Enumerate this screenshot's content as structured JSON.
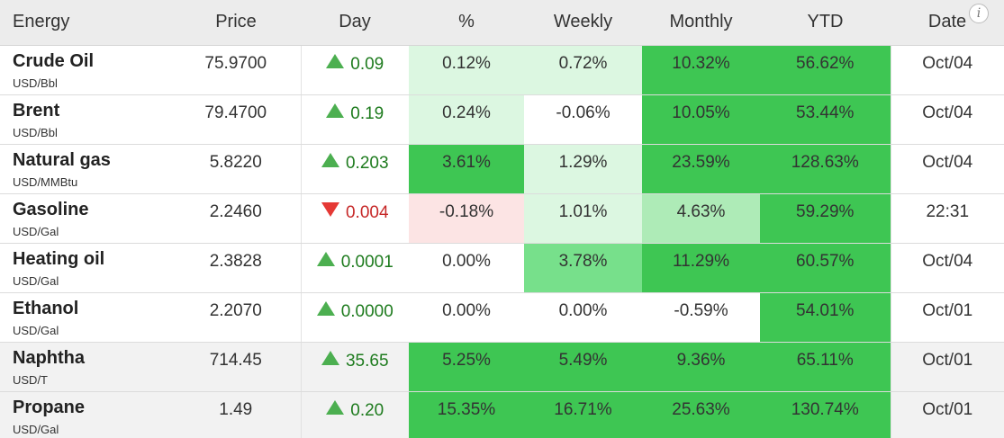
{
  "headers": [
    "Energy",
    "Price",
    "Day",
    "%",
    "Weekly",
    "Monthly",
    "YTD",
    "Date"
  ],
  "info_icon": "i",
  "colors": {
    "up_arrow": "#4caf50",
    "down_arrow": "#e53935",
    "strong_green": "#3ec653",
    "medium_green": "#77e08b",
    "light_green": "#aeebb7",
    "pale_green": "#dcf7e1",
    "pale_red": "#fce4e4",
    "shaded_row": "#f2f2f2"
  },
  "rows": [
    {
      "name": "Crude Oil",
      "unit": "USD/Bbl",
      "price": "75.9700",
      "day": "0.09",
      "direction": "up",
      "pct": "0.12%",
      "weekly": "0.72%",
      "monthly": "10.32%",
      "ytd": "56.62%",
      "date": "Oct/04",
      "shaded": false,
      "heat": {
        "pct": "pale_green",
        "weekly": "pale_green",
        "monthly": "strong_green",
        "ytd": "strong_green"
      }
    },
    {
      "name": "Brent",
      "unit": "USD/Bbl",
      "price": "79.4700",
      "day": "0.19",
      "direction": "up",
      "pct": "0.24%",
      "weekly": "-0.06%",
      "monthly": "10.05%",
      "ytd": "53.44%",
      "date": "Oct/04",
      "shaded": false,
      "heat": {
        "pct": "pale_green",
        "weekly": "",
        "monthly": "strong_green",
        "ytd": "strong_green"
      }
    },
    {
      "name": "Natural gas",
      "unit": "USD/MMBtu",
      "price": "5.8220",
      "day": "0.203",
      "direction": "up",
      "pct": "3.61%",
      "weekly": "1.29%",
      "monthly": "23.59%",
      "ytd": "128.63%",
      "date": "Oct/04",
      "shaded": false,
      "heat": {
        "pct": "strong_green",
        "weekly": "pale_green",
        "monthly": "strong_green",
        "ytd": "strong_green"
      }
    },
    {
      "name": "Gasoline",
      "unit": "USD/Gal",
      "price": "2.2460",
      "day": "0.004",
      "direction": "down",
      "pct": "-0.18%",
      "weekly": "1.01%",
      "monthly": "4.63%",
      "ytd": "59.29%",
      "date": "22:31",
      "shaded": false,
      "heat": {
        "pct": "pale_red",
        "weekly": "pale_green",
        "monthly": "light_green",
        "ytd": "strong_green"
      }
    },
    {
      "name": "Heating oil",
      "unit": "USD/Gal",
      "price": "2.3828",
      "day": "0.0001",
      "direction": "up",
      "pct": "0.00%",
      "weekly": "3.78%",
      "monthly": "11.29%",
      "ytd": "60.57%",
      "date": "Oct/04",
      "shaded": false,
      "heat": {
        "pct": "",
        "weekly": "medium_green",
        "monthly": "strong_green",
        "ytd": "strong_green"
      }
    },
    {
      "name": "Ethanol",
      "unit": "USD/Gal",
      "price": "2.2070",
      "day": "0.0000",
      "direction": "up",
      "pct": "0.00%",
      "weekly": "0.00%",
      "monthly": "-0.59%",
      "ytd": "54.01%",
      "date": "Oct/01",
      "shaded": false,
      "heat": {
        "pct": "",
        "weekly": "",
        "monthly": "",
        "ytd": "strong_green"
      }
    },
    {
      "name": "Naphtha",
      "unit": "USD/T",
      "price": "714.45",
      "day": "35.65",
      "direction": "up",
      "pct": "5.25%",
      "weekly": "5.49%",
      "monthly": "9.36%",
      "ytd": "65.11%",
      "date": "Oct/01",
      "shaded": true,
      "heat": {
        "pct": "strong_green",
        "weekly": "strong_green",
        "monthly": "strong_green",
        "ytd": "strong_green"
      }
    },
    {
      "name": "Propane",
      "unit": "USD/Gal",
      "price": "1.49",
      "day": "0.20",
      "direction": "up",
      "pct": "15.35%",
      "weekly": "16.71%",
      "monthly": "25.63%",
      "ytd": "130.74%",
      "date": "Oct/01",
      "shaded": true,
      "heat": {
        "pct": "strong_green",
        "weekly": "strong_green",
        "monthly": "strong_green",
        "ytd": "strong_green"
      }
    }
  ]
}
